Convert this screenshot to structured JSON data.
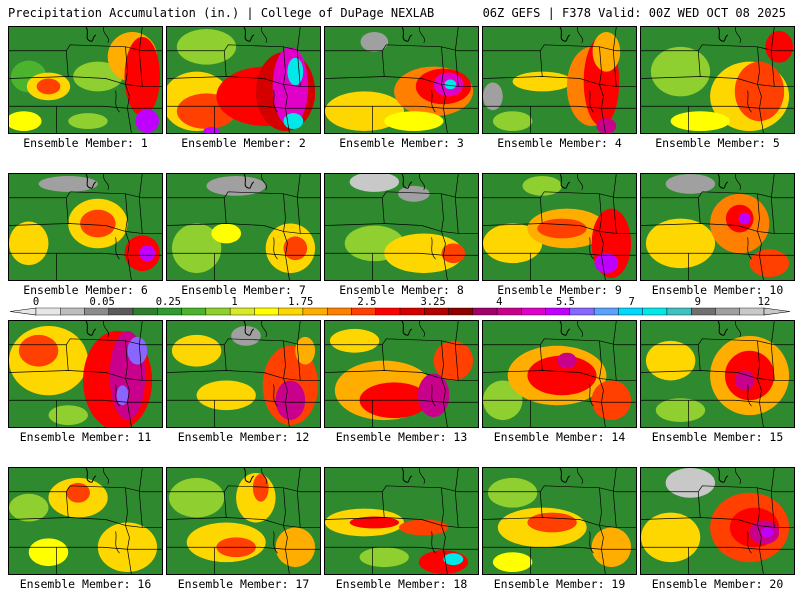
{
  "header": {
    "title_left": "Precipitation Accumulation (in.) | College of DuPage NEXLAB",
    "title_right": "06Z GEFS | F378 Valid: 00Z WED OCT 08 2025"
  },
  "legend": {
    "labels": [
      "0",
      "0.05",
      "0.25",
      "1",
      "1.75",
      "2.5",
      "3.25",
      "4",
      "5.5",
      "7",
      "9",
      "12"
    ],
    "colors": [
      "#e6e6e6",
      "#bdbdbd",
      "#8c8c8c",
      "#5a5a5a",
      "#2f7f2f",
      "#2f9a2f",
      "#4cb32f",
      "#8fcf2f",
      "#d8e82a",
      "#ffff00",
      "#ffd700",
      "#ffae00",
      "#ff8000",
      "#ff4000",
      "#ff0000",
      "#d40000",
      "#b00000",
      "#8c0000",
      "#a0006a",
      "#c8008c",
      "#e000c8",
      "#c000ff",
      "#8866ff",
      "#5aa0ff",
      "#00d8ff",
      "#00e8e8",
      "#40c0c0",
      "#707070",
      "#a0a0a0",
      "#c8c8c8"
    ]
  },
  "panels": [
    {
      "label": "Ensemble Member: 1"
    },
    {
      "label": "Ensemble Member: 2"
    },
    {
      "label": "Ensemble Member: 3"
    },
    {
      "label": "Ensemble Member: 4"
    },
    {
      "label": "Ensemble Member: 5"
    },
    {
      "label": "Ensemble Member: 6"
    },
    {
      "label": "Ensemble Member: 7"
    },
    {
      "label": "Ensemble Member: 8"
    },
    {
      "label": "Ensemble Member: 9"
    },
    {
      "label": "Ensemble Member: 10"
    },
    {
      "label": "Ensemble Member: 11"
    },
    {
      "label": "Ensemble Member: 12"
    },
    {
      "label": "Ensemble Member: 13"
    },
    {
      "label": "Ensemble Member: 14"
    },
    {
      "label": "Ensemble Member: 15"
    },
    {
      "label": "Ensemble Member: 16"
    },
    {
      "label": "Ensemble Member: 17"
    },
    {
      "label": "Ensemble Member: 18"
    },
    {
      "label": "Ensemble Member: 19"
    },
    {
      "label": "Ensemble Member: 20"
    }
  ]
}
